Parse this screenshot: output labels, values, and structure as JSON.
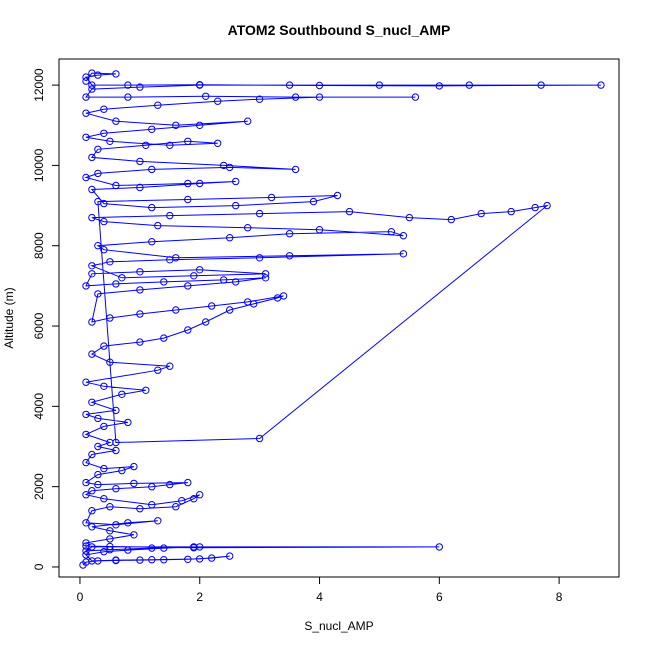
{
  "chart_data": {
    "type": "scatter",
    "title": "ATOM2 Southbound S_nucl_AMP",
    "xlabel": "S_nucl_AMP",
    "ylabel": "Altitude (m)",
    "xlim": [
      -0.35,
      9.0
    ],
    "ylim": [
      -250,
      12650
    ],
    "xticks": [
      0,
      2,
      4,
      6,
      8
    ],
    "yticks": [
      0,
      2000,
      4000,
      6000,
      8000,
      10000,
      12000
    ],
    "grid": false,
    "legend": "none",
    "marker": "open-circle",
    "connect_points": true,
    "series": [
      {
        "color": "#0000ff",
        "points": [
          [
            0.05,
            50
          ],
          [
            0.1,
            120
          ],
          [
            0.3,
            150
          ],
          [
            0.6,
            160
          ],
          [
            1.0,
            170
          ],
          [
            1.4,
            180
          ],
          [
            1.8,
            190
          ],
          [
            2.2,
            220
          ],
          [
            2.5,
            270
          ],
          [
            2.0,
            200
          ],
          [
            1.2,
            180
          ],
          [
            0.6,
            170
          ],
          [
            0.2,
            150
          ],
          [
            0.1,
            300
          ],
          [
            0.4,
            380
          ],
          [
            0.8,
            420
          ],
          [
            1.4,
            470
          ],
          [
            1.9,
            500
          ],
          [
            1.2,
            470
          ],
          [
            0.5,
            430
          ],
          [
            0.1,
            400
          ],
          [
            0.2,
            500
          ],
          [
            2.0,
            500
          ],
          [
            6.0,
            500
          ],
          [
            1.9,
            480
          ],
          [
            0.5,
            510
          ],
          [
            0.1,
            520
          ],
          [
            0.1,
            600
          ],
          [
            0.5,
            700
          ],
          [
            0.9,
            800
          ],
          [
            0.5,
            900
          ],
          [
            0.2,
            1000
          ],
          [
            0.8,
            1100
          ],
          [
            1.3,
            1150
          ],
          [
            0.6,
            1050
          ],
          [
            0.1,
            1100
          ],
          [
            0.2,
            1400
          ],
          [
            0.5,
            1500
          ],
          [
            1.0,
            1450
          ],
          [
            1.6,
            1500
          ],
          [
            1.9,
            1700
          ],
          [
            2.0,
            1800
          ],
          [
            1.7,
            1650
          ],
          [
            1.2,
            1550
          ],
          [
            0.4,
            1700
          ],
          [
            0.1,
            1800
          ],
          [
            0.2,
            1900
          ],
          [
            0.6,
            1950
          ],
          [
            1.2,
            2000
          ],
          [
            1.5,
            2050
          ],
          [
            1.8,
            2100
          ],
          [
            0.9,
            2080
          ],
          [
            0.3,
            2050
          ],
          [
            0.1,
            2100
          ],
          [
            0.3,
            2300
          ],
          [
            0.7,
            2400
          ],
          [
            0.9,
            2500
          ],
          [
            0.4,
            2450
          ],
          [
            0.1,
            2600
          ],
          [
            0.2,
            2800
          ],
          [
            0.6,
            2900
          ],
          [
            0.3,
            3000
          ],
          [
            0.5,
            3100
          ],
          [
            0.1,
            3300
          ],
          [
            0.4,
            3500
          ],
          [
            0.8,
            3600
          ],
          [
            0.3,
            3700
          ],
          [
            0.1,
            3800
          ],
          [
            0.6,
            3900
          ],
          [
            0.2,
            4100
          ],
          [
            0.7,
            4300
          ],
          [
            1.1,
            4400
          ],
          [
            0.4,
            4500
          ],
          [
            0.1,
            4600
          ],
          [
            1.3,
            4900
          ],
          [
            1.5,
            5000
          ],
          [
            0.5,
            5100
          ],
          [
            0.2,
            5300
          ],
          [
            0.4,
            5500
          ],
          [
            1.0,
            5600
          ],
          [
            1.4,
            5700
          ],
          [
            1.8,
            5900
          ],
          [
            2.1,
            6100
          ],
          [
            2.5,
            6400
          ],
          [
            2.9,
            6550
          ],
          [
            3.3,
            6700
          ],
          [
            3.4,
            6750
          ],
          [
            2.8,
            6600
          ],
          [
            2.2,
            6500
          ],
          [
            1.6,
            6400
          ],
          [
            1.0,
            6300
          ],
          [
            0.5,
            6200
          ],
          [
            0.2,
            6100
          ],
          [
            0.3,
            6800
          ],
          [
            1.0,
            6900
          ],
          [
            1.8,
            7000
          ],
          [
            2.6,
            7100
          ],
          [
            3.1,
            7200
          ],
          [
            2.4,
            7150
          ],
          [
            1.4,
            7100
          ],
          [
            0.6,
            7050
          ],
          [
            0.1,
            7000
          ],
          [
            0.2,
            7300
          ],
          [
            1.0,
            7350
          ],
          [
            2.0,
            7400
          ],
          [
            3.1,
            7300
          ],
          [
            1.9,
            7250
          ],
          [
            0.7,
            7200
          ],
          [
            0.2,
            7500
          ],
          [
            0.5,
            7600
          ],
          [
            1.5,
            7650
          ],
          [
            3.0,
            7700
          ],
          [
            5.4,
            7800
          ],
          [
            3.5,
            7750
          ],
          [
            1.6,
            7700
          ],
          [
            0.4,
            7900
          ],
          [
            0.3,
            8000
          ],
          [
            1.2,
            8100
          ],
          [
            2.5,
            8200
          ],
          [
            3.5,
            8300
          ],
          [
            5.2,
            8350
          ],
          [
            5.4,
            8250
          ],
          [
            4.0,
            8400
          ],
          [
            2.8,
            8450
          ],
          [
            1.3,
            8500
          ],
          [
            0.4,
            8600
          ],
          [
            0.2,
            8700
          ],
          [
            1.5,
            8750
          ],
          [
            3.0,
            8800
          ],
          [
            4.5,
            8850
          ],
          [
            5.5,
            8700
          ],
          [
            6.2,
            8650
          ],
          [
            6.7,
            8800
          ],
          [
            7.2,
            8850
          ],
          [
            7.6,
            8950
          ],
          [
            7.8,
            9000
          ],
          [
            3.0,
            3200
          ],
          [
            0.6,
            3100
          ],
          [
            0.3,
            9100
          ],
          [
            1.8,
            9150
          ],
          [
            3.2,
            9200
          ],
          [
            4.3,
            9250
          ],
          [
            3.9,
            9100
          ],
          [
            2.6,
            9000
          ],
          [
            1.2,
            8950
          ],
          [
            0.4,
            9050
          ],
          [
            0.2,
            9400
          ],
          [
            1.0,
            9450
          ],
          [
            2.0,
            9550
          ],
          [
            2.6,
            9600
          ],
          [
            1.8,
            9550
          ],
          [
            0.6,
            9500
          ],
          [
            0.1,
            9700
          ],
          [
            0.3,
            9800
          ],
          [
            1.2,
            9900
          ],
          [
            2.5,
            9950
          ],
          [
            3.6,
            9900
          ],
          [
            2.4,
            10000
          ],
          [
            1.0,
            10100
          ],
          [
            0.2,
            10200
          ],
          [
            0.3,
            10400
          ],
          [
            1.1,
            10500
          ],
          [
            1.8,
            10600
          ],
          [
            2.3,
            10550
          ],
          [
            1.5,
            10500
          ],
          [
            0.5,
            10600
          ],
          [
            0.1,
            10700
          ],
          [
            0.4,
            10800
          ],
          [
            1.2,
            10900
          ],
          [
            2.0,
            11000
          ],
          [
            2.8,
            11100
          ],
          [
            1.6,
            11000
          ],
          [
            0.6,
            11100
          ],
          [
            0.1,
            11300
          ],
          [
            0.4,
            11400
          ],
          [
            1.3,
            11500
          ],
          [
            2.3,
            11600
          ],
          [
            3.0,
            11650
          ],
          [
            4.0,
            11700
          ],
          [
            5.6,
            11700
          ],
          [
            3.6,
            11700
          ],
          [
            2.1,
            11720
          ],
          [
            0.8,
            11700
          ],
          [
            0.1,
            11700
          ],
          [
            0.2,
            11900
          ],
          [
            1.0,
            11950
          ],
          [
            2.0,
            12000
          ],
          [
            3.5,
            12000
          ],
          [
            5.0,
            12000
          ],
          [
            6.5,
            12000
          ],
          [
            7.7,
            12000
          ],
          [
            8.7,
            12000
          ],
          [
            6.0,
            11980
          ],
          [
            4.0,
            11990
          ],
          [
            2.0,
            12010
          ],
          [
            0.8,
            12000
          ],
          [
            0.2,
            12000
          ],
          [
            0.1,
            12200
          ],
          [
            0.3,
            12250
          ],
          [
            0.6,
            12280
          ],
          [
            0.2,
            12300
          ],
          [
            0.1,
            12100
          ]
        ]
      }
    ]
  }
}
